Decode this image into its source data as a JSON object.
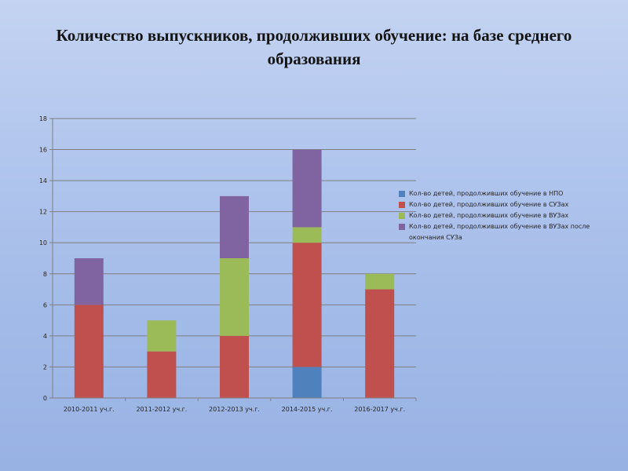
{
  "slide": {
    "title": "Количество выпускников, продолживших обучение: на базе среднего образования"
  },
  "chart_data": {
    "type": "bar",
    "stacked": true,
    "categories": [
      "2010-2011 уч.г.",
      "2011-2012 уч.г.",
      "2012-2013 уч.г.",
      "2014-2015 уч.г.",
      "2016-2017 уч.г."
    ],
    "series": [
      {
        "name": "Кол-во детей, продолживших обучение в НПО",
        "color": "#4f81bd",
        "values": [
          0,
          0,
          0,
          2,
          0
        ]
      },
      {
        "name": "Кол-во детей, продолживших обучение в СУЗах",
        "color": "#c0504d",
        "values": [
          6,
          3,
          4,
          8,
          7
        ]
      },
      {
        "name": "Кол-во детей, продолживших обучение в ВУЗах",
        "color": "#9bbb59",
        "values": [
          0,
          2,
          5,
          1,
          1
        ]
      },
      {
        "name": "Кол-во детей, продолживших обучение в ВУЗах после окончания СУЗа",
        "color": "#8064a2",
        "values": [
          3,
          0,
          4,
          5,
          0
        ]
      }
    ],
    "ylim": [
      0,
      18
    ],
    "yticks": [
      "0",
      "2",
      "4",
      "6",
      "8",
      "10",
      "12",
      "14",
      "16",
      "18"
    ],
    "grid": true,
    "legend_position": "right",
    "xlabel": "",
    "ylabel": "",
    "title": ""
  }
}
